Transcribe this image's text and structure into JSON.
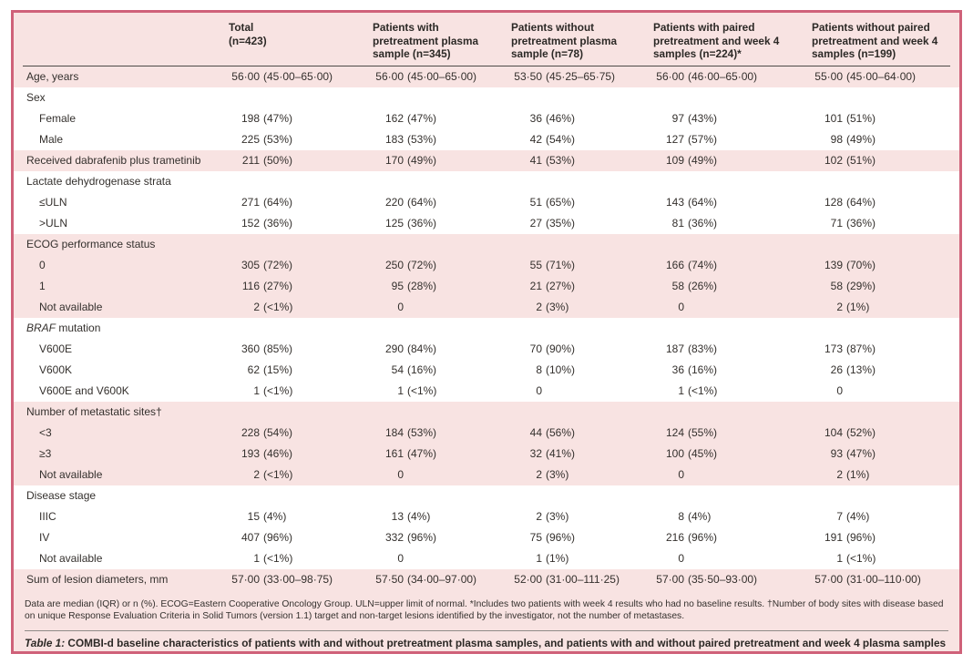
{
  "table": {
    "header_columns": [
      {
        "lines": []
      },
      {
        "lines": [
          "Total",
          "(n=423)"
        ]
      },
      {
        "lines": [
          "Patients with",
          "pretreatment plasma",
          "sample (n=345)"
        ]
      },
      {
        "lines": [
          "Patients without",
          "pretreatment plasma",
          "sample (n=78)"
        ]
      },
      {
        "lines": [
          "Patients with paired",
          "pretreatment and week 4",
          "samples (n=224)*"
        ]
      },
      {
        "lines": [
          "Patients without paired",
          "pretreatment and week 4",
          "samples (n=199)"
        ]
      }
    ],
    "rows": [
      {
        "label": "Age, years",
        "indent": false,
        "shaded": true,
        "values": [
          "56·00 (45·00–65·00)",
          "56·00 (45·00–65·00)",
          "53·50 (45·25–65·75)",
          "56·00 (46·00–65·00)",
          "55·00 (45·00–64·00)"
        ]
      },
      {
        "label": "Sex",
        "indent": false,
        "shaded": false,
        "values": [
          "",
          "",
          "",
          "",
          ""
        ]
      },
      {
        "label": "Female",
        "indent": true,
        "shaded": false,
        "values": [
          "198 (47%)",
          "162 (47%)",
          "36 (46%)",
          "97 (43%)",
          "101 (51%)"
        ]
      },
      {
        "label": "Male",
        "indent": true,
        "shaded": false,
        "values": [
          "225 (53%)",
          "183 (53%)",
          "42 (54%)",
          "127 (57%)",
          "98 (49%)"
        ]
      },
      {
        "label": "Received dabrafenib plus trametinib",
        "indent": false,
        "shaded": true,
        "values": [
          "211 (50%)",
          "170 (49%)",
          "41 (53%)",
          "109 (49%)",
          "102 (51%)"
        ]
      },
      {
        "label": "Lactate dehydrogenase strata",
        "indent": false,
        "shaded": false,
        "values": [
          "",
          "",
          "",
          "",
          ""
        ]
      },
      {
        "label": "≤ULN",
        "indent": true,
        "shaded": false,
        "values": [
          "271 (64%)",
          "220 (64%)",
          "51 (65%)",
          "143 (64%)",
          "128 (64%)"
        ]
      },
      {
        "label": ">ULN",
        "indent": true,
        "shaded": false,
        "values": [
          "152 (36%)",
          "125 (36%)",
          "27 (35%)",
          "81 (36%)",
          "71 (36%)"
        ]
      },
      {
        "label": "ECOG performance status",
        "indent": false,
        "shaded": true,
        "values": [
          "",
          "",
          "",
          "",
          ""
        ]
      },
      {
        "label": "0",
        "indent": true,
        "shaded": true,
        "values": [
          "305 (72%)",
          "250 (72%)",
          "55 (71%)",
          "166 (74%)",
          "139 (70%)"
        ]
      },
      {
        "label": "1",
        "indent": true,
        "shaded": true,
        "values": [
          "116 (27%)",
          "95 (28%)",
          "21 (27%)",
          "58 (26%)",
          "58 (29%)"
        ]
      },
      {
        "label": "Not available",
        "indent": true,
        "shaded": true,
        "values": [
          "2 (<1%)",
          "0",
          "2 (3%)",
          "0",
          "2 (1%)"
        ]
      },
      {
        "label": "BRAF mutation",
        "italic_prefix": "BRAF",
        "indent": false,
        "shaded": false,
        "values": [
          "",
          "",
          "",
          "",
          ""
        ]
      },
      {
        "label": "V600E",
        "indent": true,
        "shaded": false,
        "values": [
          "360 (85%)",
          "290 (84%)",
          "70 (90%)",
          "187 (83%)",
          "173 (87%)"
        ]
      },
      {
        "label": "V600K",
        "indent": true,
        "shaded": false,
        "values": [
          "62 (15%)",
          "54 (16%)",
          "8 (10%)",
          "36 (16%)",
          "26 (13%)"
        ]
      },
      {
        "label": "V600E and V600K",
        "indent": true,
        "shaded": false,
        "values": [
          "1 (<1%)",
          "1 (<1%)",
          "0",
          "1 (<1%)",
          "0"
        ]
      },
      {
        "label": "Number of metastatic sites†",
        "indent": false,
        "shaded": true,
        "values": [
          "",
          "",
          "",
          "",
          ""
        ]
      },
      {
        "label": "<3",
        "indent": true,
        "shaded": true,
        "values": [
          "228 (54%)",
          "184 (53%)",
          "44 (56%)",
          "124 (55%)",
          "104 (52%)"
        ]
      },
      {
        "label": "≥3",
        "indent": true,
        "shaded": true,
        "values": [
          "193 (46%)",
          "161 (47%)",
          "32 (41%)",
          "100 (45%)",
          "93 (47%)"
        ]
      },
      {
        "label": "Not available",
        "indent": true,
        "shaded": true,
        "values": [
          "2 (<1%)",
          "0",
          "2 (3%)",
          "0",
          "2 (1%)"
        ]
      },
      {
        "label": "Disease stage",
        "indent": false,
        "shaded": false,
        "values": [
          "",
          "",
          "",
          "",
          ""
        ]
      },
      {
        "label": "IIIC",
        "indent": true,
        "shaded": false,
        "values": [
          "15 (4%)",
          "13 (4%)",
          "2 (3%)",
          "8 (4%)",
          "7 (4%)"
        ]
      },
      {
        "label": "IV",
        "indent": true,
        "shaded": false,
        "values": [
          "407 (96%)",
          "332 (96%)",
          "75 (96%)",
          "216 (96%)",
          "191 (96%)"
        ]
      },
      {
        "label": "Not available",
        "indent": true,
        "shaded": false,
        "values": [
          "1 (<1%)",
          "0",
          "1 (1%)",
          "0",
          "1 (<1%)"
        ]
      },
      {
        "label": "Sum of lesion diameters, mm",
        "indent": false,
        "shaded": true,
        "values": [
          "57·00 (33·00–98·75)",
          "57·50 (34·00–97·00)",
          "52·00 (31·00–111·25)",
          "57·00 (35·50–93·00)",
          "57·00 (31·00–110·00)"
        ]
      }
    ],
    "footnote": "Data are median (IQR) or n (%). ECOG=Eastern Cooperative Oncology Group. ULN=upper limit of normal. *Includes two patients with week 4 results who had no baseline results. †Number of body sites with disease based on unique Response Evaluation Criteria in Solid Tumors (version 1.1) target and non‑target lesions identified by the investigator, not the number of metastases.",
    "caption_label": "Table 1:",
    "caption_text": "COMBI-d baseline characteristics of patients with and without pretreatment plasma samples, and patients with and without paired pretreatment and week 4 plasma samples"
  }
}
